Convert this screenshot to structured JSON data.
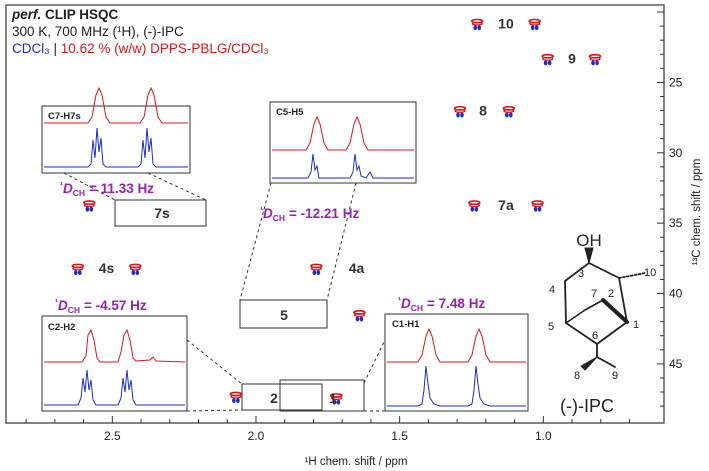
{
  "header": {
    "line1_italic": "perf.",
    "line1_rest": "CLIP HSQC",
    "line2": "300 K, 700 MHz (¹H), (-)-IPC",
    "line3_blue": "CDCl₃",
    "line3_sep": "|",
    "line3_red": "10.62 % (w/w) DPPS-PBLG/CDCl₃"
  },
  "colors": {
    "blue": "#1a2ecc",
    "red": "#e0141b",
    "purple": "#9a1fb3",
    "axis": "#333333"
  },
  "chart_data": {
    "type": "scatter",
    "xlabel": "¹H chem. shift / ppm",
    "ylabel": "¹³C chem. shift / ppm",
    "xlim": [
      2.87,
      0.58
    ],
    "ylim": [
      19.5,
      49.2
    ],
    "x_ticks": [
      "2.5",
      "2.0",
      "1.5",
      "1.0"
    ],
    "y_ticks": [
      "25",
      "30",
      "35",
      "40",
      "45"
    ],
    "x_tick_values": [
      2.5,
      2.0,
      1.5,
      1.0
    ],
    "y_tick_values": [
      25,
      30,
      35,
      40,
      45
    ],
    "x_reversed": true,
    "y_reversed": true,
    "series": [
      {
        "name": "CDCl₃",
        "color": "#1a2ecc"
      },
      {
        "name": "10.62 % (w/w) DPPS-PBLG/CDCl₃",
        "color": "#e0141b"
      }
    ],
    "peaks": [
      {
        "label": "10",
        "c": 20.8,
        "h": [
          1.23,
          1.03
        ]
      },
      {
        "label": "9",
        "c": 23.3,
        "h": [
          0.985,
          0.82
        ]
      },
      {
        "label": "8",
        "c": 27.0,
        "h": [
          1.29,
          1.12
        ]
      },
      {
        "label": "7a",
        "c": 33.7,
        "h": [
          1.24,
          1.02
        ]
      },
      {
        "label": "4s",
        "c": 38.2,
        "h": [
          2.62,
          2.42
        ]
      },
      {
        "label": "4a",
        "c": 38.2,
        "h": [
          1.79
        ]
      },
      {
        "label": "7s",
        "c": 33.7,
        "h": [
          2.58,
          2.37
        ]
      },
      {
        "label": "5",
        "c": 41.5,
        "h": [
          1.81,
          1.64
        ]
      },
      {
        "label": "2",
        "c": 47.3,
        "h": [
          2.07
        ]
      },
      {
        "label": "1",
        "c": 47.4,
        "h": [
          1.85,
          1.72
        ]
      }
    ]
  },
  "insets": [
    {
      "name": "C7-H7s",
      "coupling_prefix": "¹",
      "coupling_symbol": "D",
      "coupling_sub": "CH",
      "coupling_value": "= 11.33 Hz",
      "zoom_label": "7s"
    },
    {
      "name": "C5-H5",
      "coupling_prefix": "¹",
      "coupling_symbol": "D",
      "coupling_sub": "CH",
      "coupling_value": "= -12.21 Hz",
      "zoom_label": "5"
    },
    {
      "name": "C2-H2",
      "coupling_prefix": "¹",
      "coupling_symbol": "D",
      "coupling_sub": "CH",
      "coupling_value": "= -4.57 Hz",
      "zoom_label": "2"
    },
    {
      "name": "C1-H1",
      "coupling_prefix": "¹",
      "coupling_symbol": "D",
      "coupling_sub": "CH",
      "coupling_value": "= 7.48 Hz",
      "zoom_label": "1"
    }
  ],
  "molecule": {
    "name": "(-)-IPC",
    "substituent": "OH",
    "atoms": [
      "1",
      "2",
      "3",
      "4",
      "5",
      "6",
      "7",
      "8",
      "9",
      "10"
    ]
  }
}
